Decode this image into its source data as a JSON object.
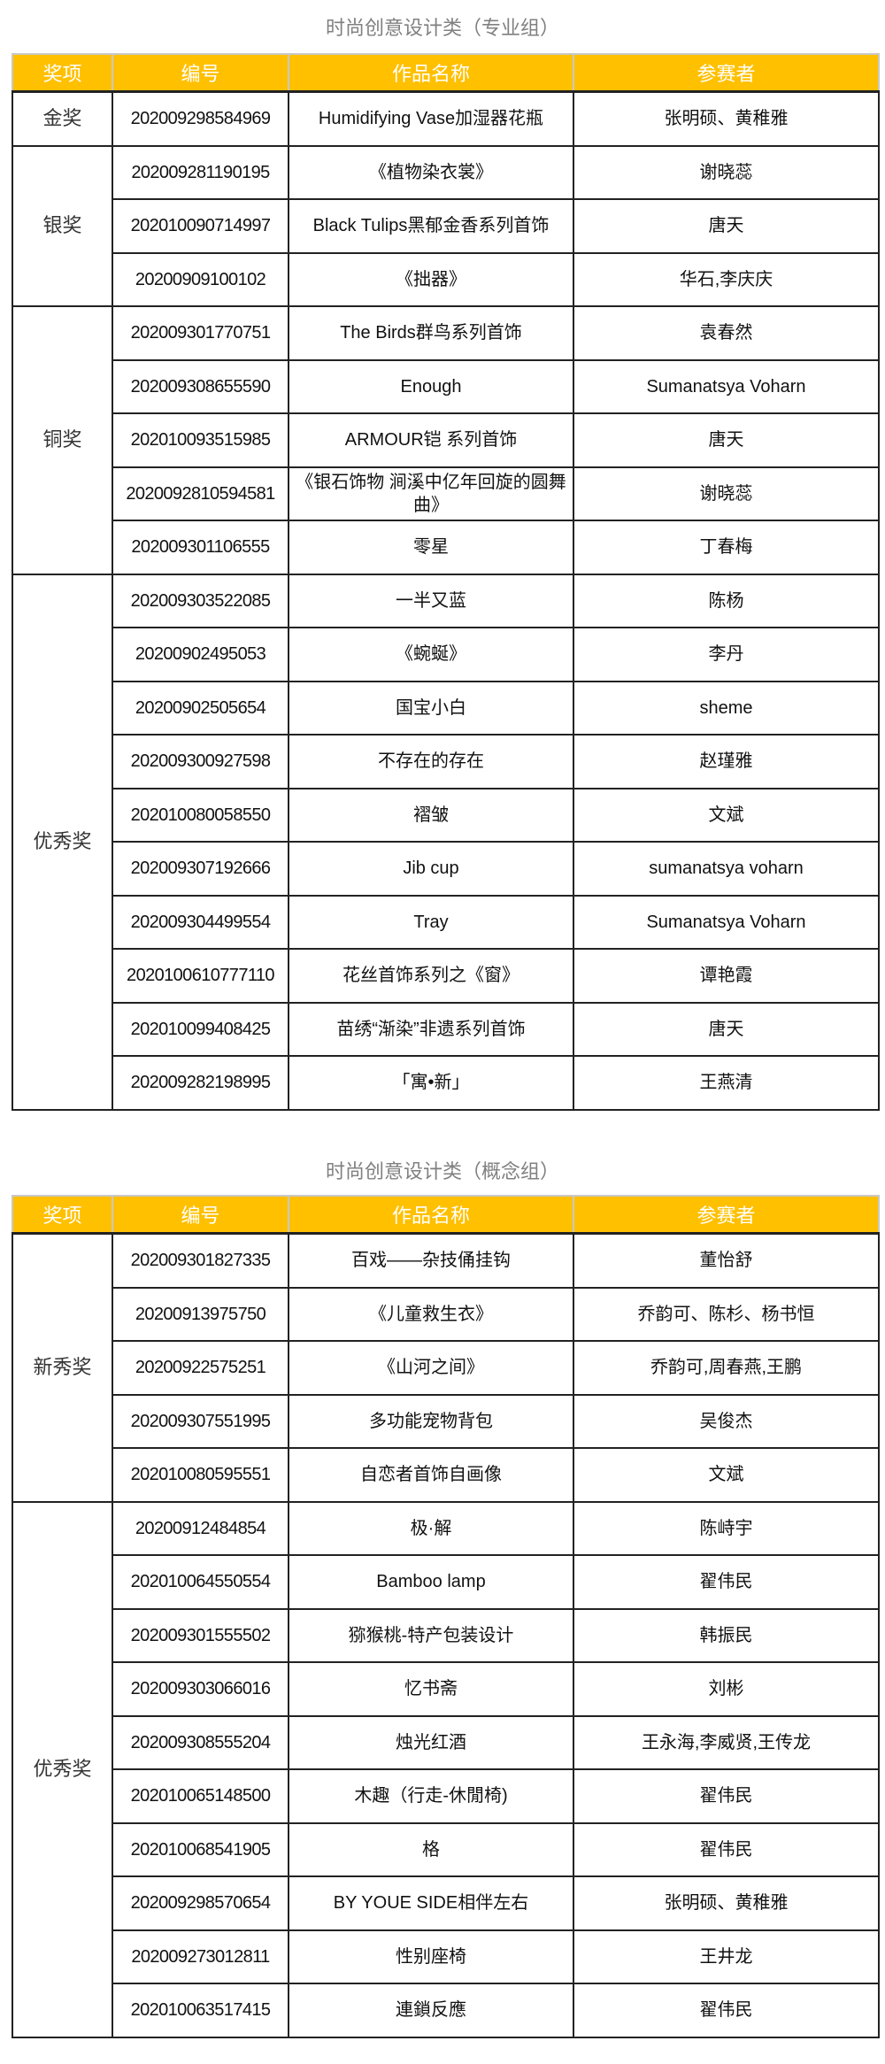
{
  "headers": [
    "奖项",
    "编号",
    "作品名称",
    "参赛者"
  ],
  "colors": {
    "header_bg": "#FFC000",
    "header_text": "#FFFFFF",
    "title_text": "#808080"
  },
  "tables": [
    {
      "title": "时尚创意设计类（专业组）",
      "groups": [
        {
          "award": "金奖",
          "rows": [
            {
              "id": "202009298584969",
              "work": "Humidifying Vase加湿器花瓶",
              "entrant": "张明硕、黄稚雅"
            }
          ]
        },
        {
          "award": "银奖",
          "rows": [
            {
              "id": "202009281190195",
              "work": "《植物染衣裳》",
              "entrant": "谢晓蕊"
            },
            {
              "id": "202010090714997",
              "work": "Black Tulips黑郁金香系列首饰",
              "entrant": "唐天"
            },
            {
              "id": "20200909100102",
              "work": "《拙器》",
              "entrant": "华石,李庆庆"
            }
          ]
        },
        {
          "award": "铜奖",
          "rows": [
            {
              "id": "202009301770751",
              "work": "The Birds群鸟系列首饰",
              "entrant": "袁春然"
            },
            {
              "id": "202009308655590",
              "work": "Enough",
              "entrant": "Sumanatsya Voharn"
            },
            {
              "id": "202010093515985",
              "work": "ARMOUR铠 系列首饰",
              "entrant": "唐天"
            },
            {
              "id": "2020092810594581",
              "work": "《银石饰物 涧溪中亿年回旋的圆舞曲》",
              "entrant": "谢晓蕊"
            },
            {
              "id": "202009301106555",
              "work": "零星",
              "entrant": "丁春梅"
            }
          ]
        },
        {
          "award": "优秀奖",
          "rows": [
            {
              "id": "202009303522085",
              "work": "一半又蓝",
              "entrant": "陈杨"
            },
            {
              "id": "20200902495053",
              "work": "《蜿蜒》",
              "entrant": "李丹"
            },
            {
              "id": "20200902505654",
              "work": "国宝小白",
              "entrant": "sheme"
            },
            {
              "id": "202009300927598",
              "work": "不存在的存在",
              "entrant": "赵瑾雅"
            },
            {
              "id": "202010080058550",
              "work": "褶皱",
              "entrant": "文斌"
            },
            {
              "id": "202009307192666",
              "work": "Jib cup",
              "entrant": "sumanatsya voharn"
            },
            {
              "id": "202009304499554",
              "work": "Tray",
              "entrant": "Sumanatsya Voharn"
            },
            {
              "id": "2020100610777110",
              "work": "花丝首饰系列之《窗》",
              "entrant": "谭艳霞"
            },
            {
              "id": "202010099408425",
              "work": "苗绣“渐染”非遗系列首饰",
              "entrant": "唐天"
            },
            {
              "id": "202009282198995",
              "work": "「寓•新」",
              "entrant": "王燕清"
            }
          ]
        }
      ]
    },
    {
      "title": "时尚创意设计类（概念组）",
      "groups": [
        {
          "award": "新秀奖",
          "rows": [
            {
              "id": "202009301827335",
              "work": "百戏——杂技俑挂钩",
              "entrant": "董怡舒"
            },
            {
              "id": "20200913975750",
              "work": "《儿童救生衣》",
              "entrant": "乔韵可、陈杉、杨书恒"
            },
            {
              "id": "20200922575251",
              "work": "《山河之间》",
              "entrant": "乔韵可,周春燕,王鹏"
            },
            {
              "id": "202009307551995",
              "work": "多功能宠物背包",
              "entrant": "吴俊杰"
            },
            {
              "id": "202010080595551",
              "work": "自恋者首饰自画像",
              "entrant": "文斌"
            }
          ]
        },
        {
          "award": "优秀奖",
          "rows": [
            {
              "id": "20200912484854",
              "work": "极·解",
              "entrant": "陈峙宇"
            },
            {
              "id": "202010064550554",
              "work": "Bamboo lamp",
              "entrant": "翟伟民"
            },
            {
              "id": "202009301555502",
              "work": "猕猴桃-特产包装设计",
              "entrant": "韩振民"
            },
            {
              "id": "202009303066016",
              "work": "忆书斋",
              "entrant": "刘彬"
            },
            {
              "id": "202009308555204",
              "work": "烛光红酒",
              "entrant": "王永海,李威贤,王传龙"
            },
            {
              "id": "202010065148500",
              "work": "木趣（行走-休閒椅)",
              "entrant": "翟伟民"
            },
            {
              "id": "202010068541905",
              "work": "格",
              "entrant": "翟伟民"
            },
            {
              "id": "202009298570654",
              "work": "BY YOUE SIDE相伴左右",
              "entrant": "张明硕、黄稚雅"
            },
            {
              "id": "202009273012811",
              "work": "性别座椅",
              "entrant": "王井龙"
            },
            {
              "id": "202010063517415",
              "work": "連鎖反應",
              "entrant": "翟伟民"
            }
          ]
        }
      ]
    }
  ]
}
